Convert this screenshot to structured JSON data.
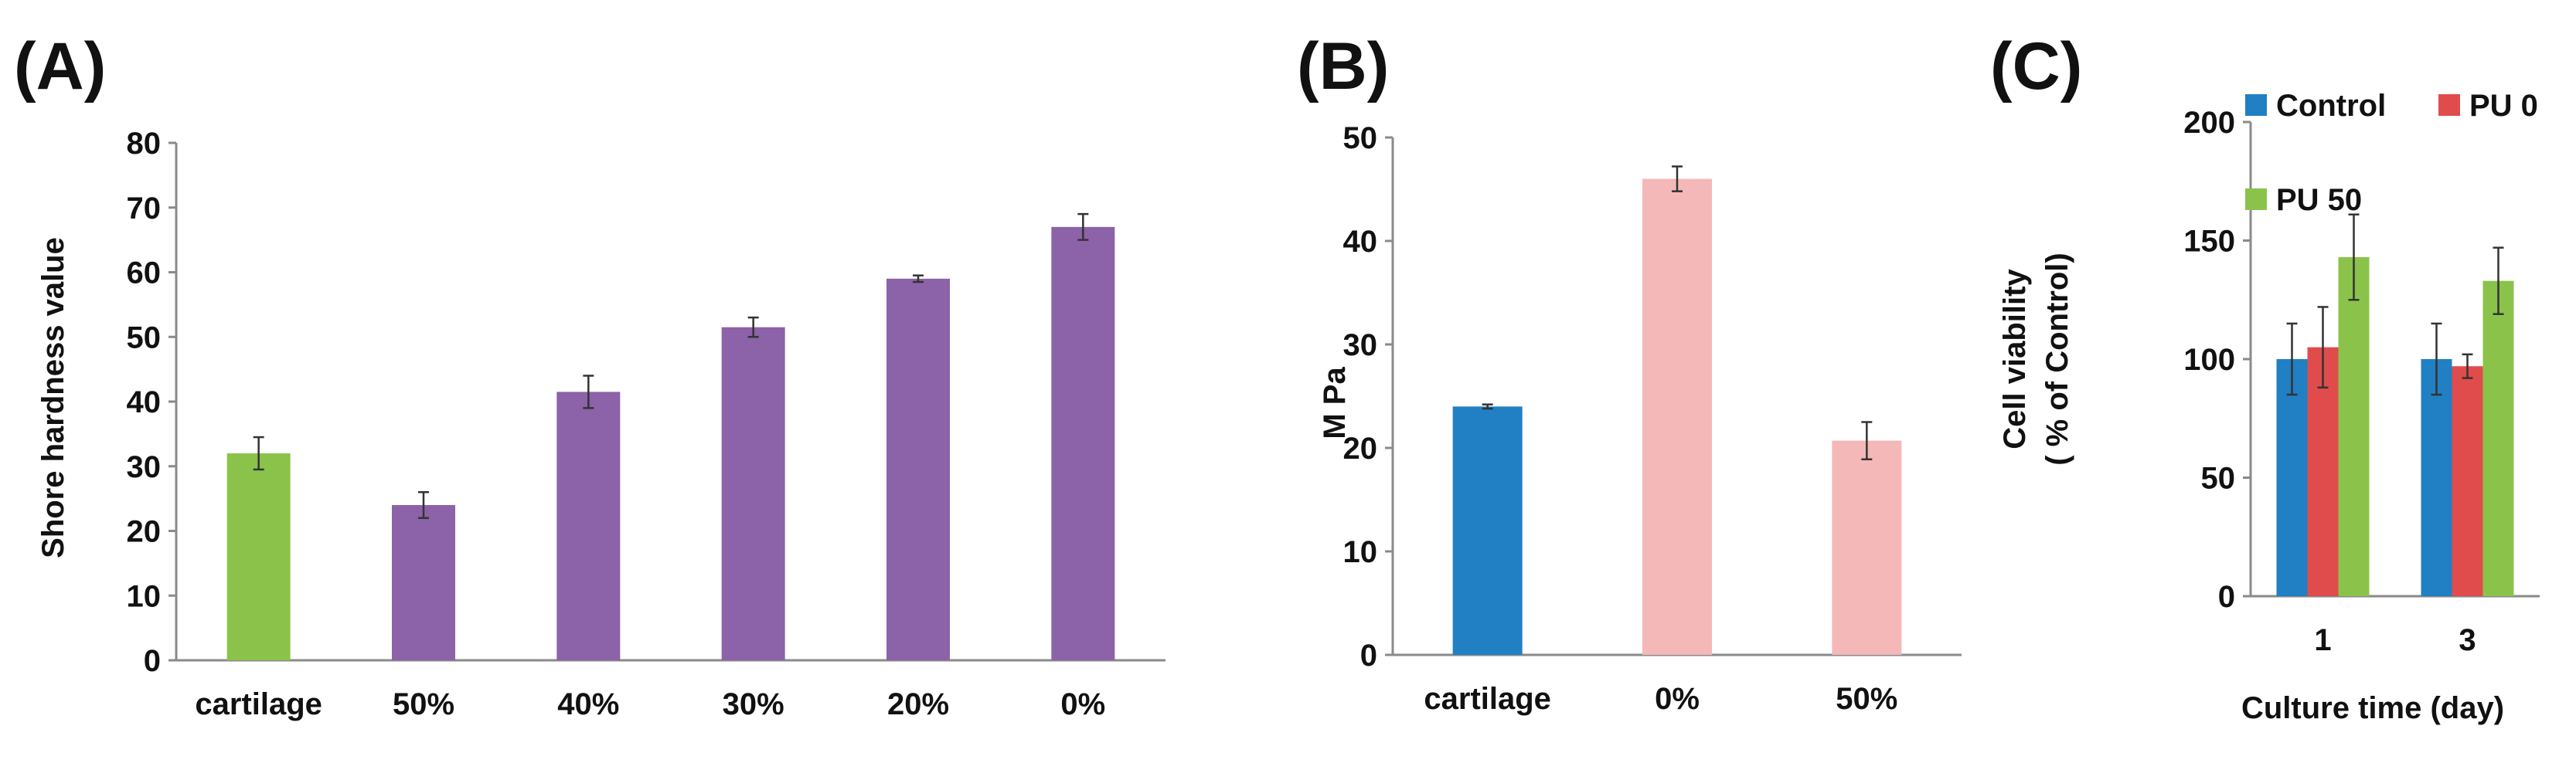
{
  "chart_data": [
    {
      "panel_label": "(A)",
      "type": "bar",
      "categories": [
        "cartilage",
        "50%",
        "40%",
        "30%",
        "20%",
        "0%"
      ],
      "values": [
        32,
        24,
        41.5,
        51.5,
        59,
        67
      ],
      "errors": [
        2.5,
        2,
        2.5,
        1.5,
        0.5,
        2
      ],
      "colors": [
        "#8BC34A",
        "#8C62A8",
        "#8C62A8",
        "#8C62A8",
        "#8C62A8",
        "#8C62A8"
      ],
      "ylabel": "Shore hardness value",
      "xlabel": "",
      "ylim": [
        0,
        80
      ],
      "yticks": [
        0,
        10,
        20,
        30,
        40,
        50,
        60,
        70,
        80
      ],
      "grid": false
    },
    {
      "panel_label": "(B)",
      "type": "bar",
      "categories": [
        "cartilage",
        "0%",
        "50%"
      ],
      "values": [
        24,
        46,
        20.7
      ],
      "errors": [
        0.2,
        1.2,
        1.8
      ],
      "colors": [
        "#2080C3",
        "#F4B8B8",
        "#F4B8B8"
      ],
      "ylabel": "M Pa",
      "xlabel": "",
      "ylim": [
        0,
        50
      ],
      "yticks": [
        0,
        10,
        20,
        30,
        40,
        50
      ],
      "grid": false
    },
    {
      "panel_label": "(C)",
      "type": "bar",
      "categories": [
        "1",
        "3"
      ],
      "series": [
        {
          "name": "Control",
          "color": "#2080C3",
          "values": [
            100,
            100
          ],
          "errors": [
            15,
            15
          ]
        },
        {
          "name": "PU 0",
          "color": "#E04C4C",
          "values": [
            105,
            97
          ],
          "errors": [
            17,
            5
          ]
        },
        {
          "name": "PU 50",
          "color": "#8BC34A",
          "values": [
            143,
            133
          ],
          "errors": [
            18,
            14
          ]
        }
      ],
      "ylabel_line1": "Cell viability",
      "ylabel_line2": "( % of Control)",
      "xlabel": "Culture time (day)",
      "ylim": [
        0,
        200
      ],
      "yticks": [
        0,
        50,
        100,
        150,
        200
      ],
      "legend_position": "top",
      "grid": false
    }
  ]
}
